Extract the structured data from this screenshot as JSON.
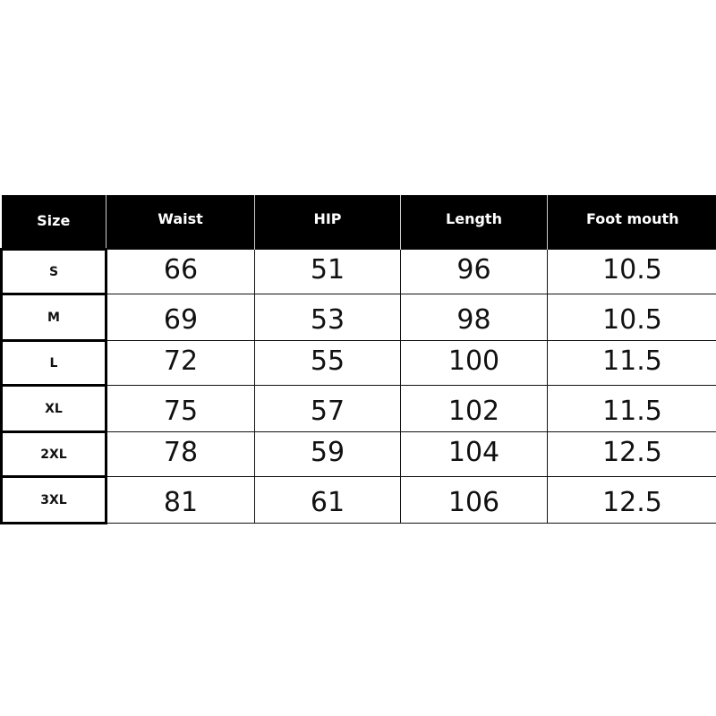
{
  "headers": [
    "Size",
    "Waist",
    "HIP",
    "Length",
    "Foot mouth"
  ],
  "rows": [
    [
      "S",
      "66",
      "51",
      "96",
      "10.5"
    ],
    [
      "M",
      "69",
      "53",
      "98",
      "10.5"
    ],
    [
      "L",
      "72",
      "55",
      "100",
      "11.5"
    ],
    [
      "XL",
      "75",
      "57",
      "102",
      "11.5"
    ],
    [
      "2XL",
      "78",
      "59",
      "104",
      "12.5"
    ],
    [
      "3XL",
      "81",
      "61",
      "106",
      "12.5"
    ]
  ]
}
